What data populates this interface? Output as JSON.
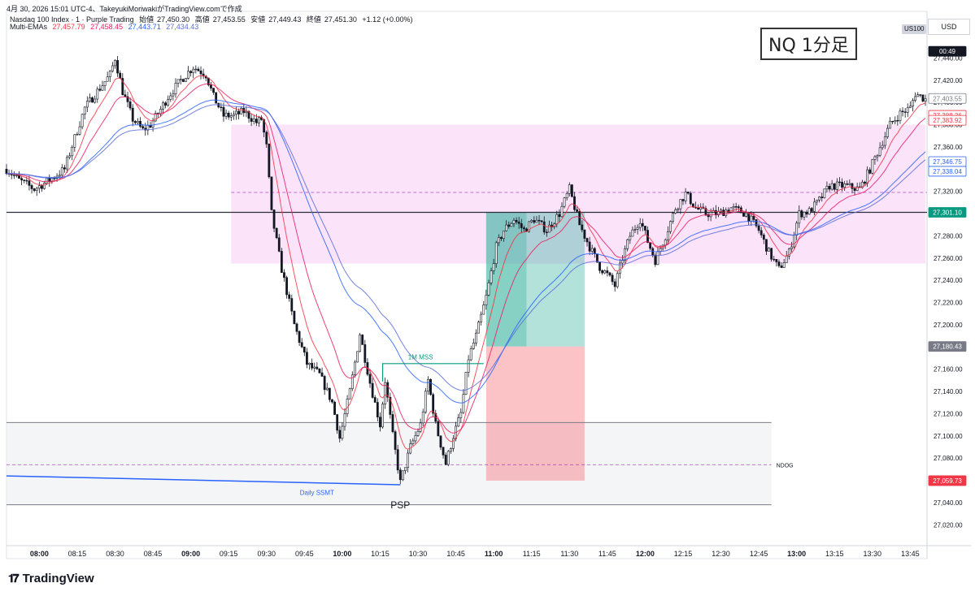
{
  "header": {
    "line1": "4月 30, 2026 15:01 UTC-4、TakeyukiMoriwakiがTradingView.comで作成",
    "instrument": "Nasdaq 100 Index · 1 · Purple Trading",
    "ohlc_open_label": "始値",
    "ohlc_open": "27,450.30",
    "ohlc_high_label": "高値",
    "ohlc_high": "27,453.55",
    "ohlc_low_label": "安値",
    "ohlc_low": "27,449.43",
    "ohlc_close_label": "終値",
    "ohlc_close": "27,451.30",
    "ohlc_change": "+1.12 (+0.00%)",
    "indicator_name": "Multi-EMAs",
    "ema_values": [
      "27,457.79",
      "27,458.45",
      "27,443.71",
      "27,434.43"
    ]
  },
  "currency": "USD",
  "symbol_tag": "US100",
  "title_box": "NQ 1分足",
  "brand": "TradingView",
  "colors": {
    "bull": "#131722",
    "bear": "#131722",
    "ema_fast_1": "#f23645",
    "ema_fast_2": "#e91e63",
    "ema_slow_1": "#2962ff",
    "ema_slow_2": "#5b6cd9",
    "pink_zone": "#f8c7f6",
    "grey_zone": "#eceff2",
    "profit": "#22ab94",
    "loss": "#f7525f",
    "level_line": "#131722",
    "mss": "#089981",
    "ssmt": "#2962ff"
  },
  "chart_data": {
    "type": "candlestick",
    "ylim": [
      27010,
      27460
    ],
    "y_ticks": [
      "27,440.00",
      "27,420.00",
      "27,400.00",
      "27,380.00",
      "27,360.00",
      "27,340.00",
      "27,320.00",
      "27,300.00",
      "27,280.00",
      "27,260.00",
      "27,240.00",
      "27,220.00",
      "27,200.00",
      "27,180.00",
      "27,160.00",
      "27,140.00",
      "27,120.00",
      "27,100.00",
      "27,080.00",
      "27,060.00",
      "27,040.00",
      "27,020.00"
    ],
    "y_tick_values": [
      27440,
      27420,
      27400,
      27380,
      27360,
      27340,
      27320,
      27300,
      27280,
      27260,
      27240,
      27220,
      27200,
      27180,
      27160,
      27140,
      27120,
      27100,
      27080,
      27060,
      27040,
      27020
    ],
    "x_ticks": [
      "08:00",
      "08:15",
      "08:30",
      "08:45",
      "09:00",
      "09:15",
      "09:30",
      "09:45",
      "10:00",
      "10:15",
      "10:30",
      "10:45",
      "11:00",
      "11:15",
      "11:30",
      "11:45",
      "12:00",
      "12:15",
      "12:30",
      "12:45",
      "13:00",
      "13:15",
      "13:30",
      "13:45"
    ],
    "x_tick_minutes": [
      480,
      495,
      510,
      525,
      540,
      555,
      570,
      585,
      600,
      615,
      630,
      645,
      660,
      675,
      690,
      705,
      720,
      735,
      750,
      765,
      780,
      795,
      810,
      825
    ],
    "x_range_minutes": [
      467,
      831
    ],
    "bold_ticks": [
      "08:00",
      "09:00",
      "10:00",
      "11:00",
      "12:00",
      "13:00"
    ],
    "price_labels": [
      {
        "text": "00:49",
        "value": 27446,
        "kind": "timer"
      },
      {
        "text": "27,403.55",
        "value": 27403.55,
        "kind": "outline-grey"
      },
      {
        "text": "27,388.36",
        "value": 27388.36,
        "kind": "outline-red"
      },
      {
        "text": "27,383.92",
        "value": 27383.92,
        "kind": "outline-red"
      },
      {
        "text": "27,346.75",
        "value": 27346.75,
        "kind": "outline-blue"
      },
      {
        "text": "27,338.04",
        "value": 27338.04,
        "kind": "outline-blue"
      },
      {
        "text": "27,301.10",
        "value": 27301.1,
        "kind": "fill-green"
      },
      {
        "text": "27,180.43",
        "value": 27180.43,
        "kind": "fill-grey"
      },
      {
        "text": "27,059.73",
        "value": 27059.73,
        "kind": "fill-red"
      }
    ],
    "waypoints": [
      [
        467,
        27340
      ],
      [
        472,
        27330
      ],
      [
        478,
        27322
      ],
      [
        484,
        27330
      ],
      [
        490,
        27340
      ],
      [
        494,
        27368
      ],
      [
        498,
        27395
      ],
      [
        503,
        27410
      ],
      [
        508,
        27425
      ],
      [
        510,
        27440
      ],
      [
        513,
        27410
      ],
      [
        517,
        27385
      ],
      [
        521,
        27375
      ],
      [
        524,
        27380
      ],
      [
        527,
        27390
      ],
      [
        531,
        27405
      ],
      [
        536,
        27420
      ],
      [
        541,
        27432
      ],
      [
        546,
        27425
      ],
      [
        549,
        27405
      ],
      [
        553,
        27388
      ],
      [
        557,
        27388
      ],
      [
        561,
        27392
      ],
      [
        566,
        27382
      ],
      [
        568,
        27385
      ],
      [
        570,
        27360
      ],
      [
        572,
        27300
      ],
      [
        576,
        27250
      ],
      [
        581,
        27200
      ],
      [
        586,
        27165
      ],
      [
        591,
        27155
      ],
      [
        596,
        27130
      ],
      [
        599,
        27098
      ],
      [
        603,
        27140
      ],
      [
        607,
        27192
      ],
      [
        611,
        27148
      ],
      [
        615,
        27110
      ],
      [
        617,
        27150
      ],
      [
        620,
        27100
      ],
      [
        623,
        27058
      ],
      [
        627,
        27090
      ],
      [
        631,
        27110
      ],
      [
        634,
        27150
      ],
      [
        637,
        27110
      ],
      [
        641,
        27075
      ],
      [
        644,
        27100
      ],
      [
        647,
        27120
      ],
      [
        650,
        27170
      ],
      [
        653,
        27190
      ],
      [
        657,
        27225
      ],
      [
        661,
        27270
      ],
      [
        664,
        27285
      ],
      [
        668,
        27295
      ],
      [
        672,
        27285
      ],
      [
        676,
        27295
      ],
      [
        681,
        27285
      ],
      [
        686,
        27300
      ],
      [
        690,
        27322
      ],
      [
        694,
        27290
      ],
      [
        698,
        27270
      ],
      [
        702,
        27252
      ],
      [
        705,
        27245
      ],
      [
        708,
        27235
      ],
      [
        711,
        27260
      ],
      [
        714,
        27280
      ],
      [
        718,
        27295
      ],
      [
        721,
        27275
      ],
      [
        724,
        27258
      ],
      [
        728,
        27280
      ],
      [
        732,
        27305
      ],
      [
        736,
        27318
      ],
      [
        740,
        27305
      ],
      [
        744,
        27300
      ],
      [
        749,
        27300
      ],
      [
        754,
        27305
      ],
      [
        760,
        27300
      ],
      [
        765,
        27285
      ],
      [
        769,
        27265
      ],
      [
        773,
        27250
      ],
      [
        777,
        27265
      ],
      [
        781,
        27300
      ],
      [
        785,
        27302
      ],
      [
        789,
        27312
      ],
      [
        793,
        27325
      ],
      [
        799,
        27325
      ],
      [
        805,
        27322
      ],
      [
        809,
        27340
      ],
      [
        813,
        27360
      ],
      [
        817,
        27380
      ],
      [
        821,
        27390
      ],
      [
        825,
        27395
      ],
      [
        827,
        27408
      ],
      [
        831,
        27403
      ]
    ],
    "ema_series": [
      {
        "name": "EMA 1",
        "value": "27,457.79",
        "color": "#f23645",
        "period": 9
      },
      {
        "name": "EMA 2",
        "value": "27,458.45",
        "color": "#e91e63",
        "period": 20
      },
      {
        "name": "EMA 3",
        "value": "27,443.71",
        "color": "#2962ff",
        "period": 50
      },
      {
        "name": "EMA 4",
        "value": "27,434.43",
        "color": "#5b6cd9",
        "period": 60
      }
    ],
    "zones": [
      {
        "name": "pink-premium-zone",
        "x_start": 556,
        "x_end": 831,
        "y_top": 27380,
        "y_bottom": 27255,
        "color": "#f8c7f6"
      },
      {
        "name": "grey-ndog-zone",
        "x_start": 467,
        "x_end": 770,
        "y_top": 27112,
        "y_bottom": 27038,
        "color": "#eceff2"
      },
      {
        "name": "profit-zone-dark",
        "x_start": 657,
        "x_end": 673,
        "y_top": 27301.1,
        "y_bottom": 27180.43,
        "color": "#22ab94"
      },
      {
        "name": "profit-zone-light",
        "x_start": 673,
        "x_end": 696,
        "y_top": 27301.1,
        "y_bottom": 27180.43,
        "color": "#22ab94"
      },
      {
        "name": "loss-zone",
        "x_start": 657,
        "x_end": 696,
        "y_top": 27180.43,
        "y_bottom": 27059.73,
        "color": "#f7525f"
      }
    ],
    "hlines": [
      {
        "name": "level-27301",
        "y": 27301.1,
        "style": "solid"
      },
      {
        "name": "pink-mid-dashed",
        "y": 27319,
        "style": "dashed",
        "x_start": 556
      },
      {
        "name": "ndog-dashed",
        "y": 27074,
        "style": "dashed",
        "x_end": 770
      }
    ],
    "annotations": [
      {
        "text": "1M MSS",
        "x": 631,
        "y": 27171
      },
      {
        "text": "Daily SSMT",
        "x": 590,
        "y": 27049
      },
      {
        "text": "PSP",
        "x": 623,
        "y": 27037
      },
      {
        "text": "NDOG",
        "x": 770,
        "y": 27074
      }
    ],
    "mss_line": {
      "x_start": 616,
      "x_end": 656,
      "y": 27165
    },
    "ssmt_line": {
      "x_start": 467,
      "x_end": 623,
      "y_start": 27064,
      "y_end": 27056
    }
  }
}
